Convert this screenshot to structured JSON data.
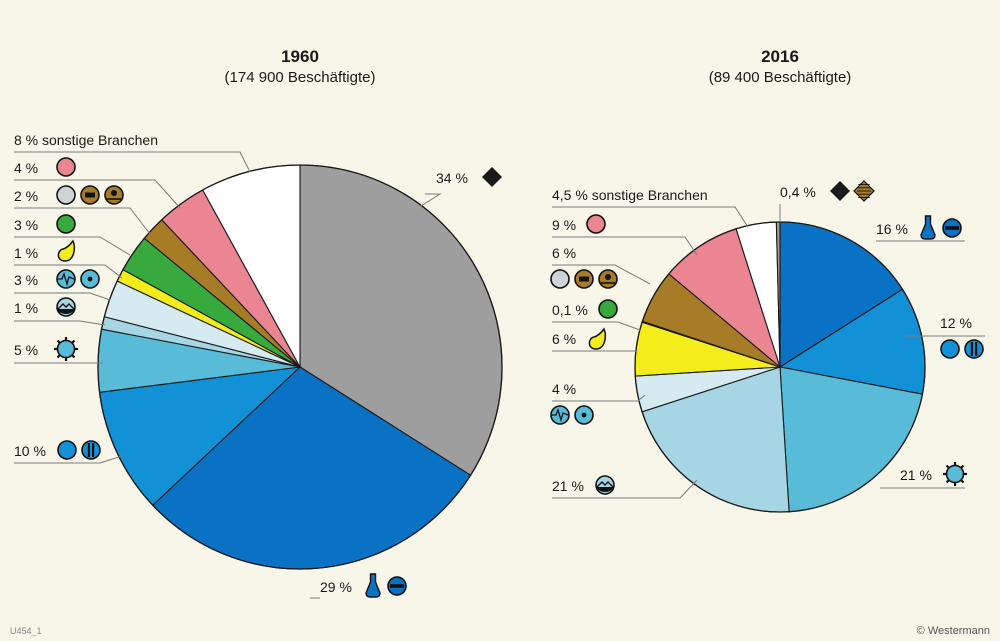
{
  "chart_data": [
    {
      "type": "pie",
      "title": "1960",
      "subtitle": "(174 900 Beschäftigte)",
      "slices": [
        {
          "value": 34,
          "label": "34 %",
          "color": "#9e9e9e",
          "icons": [
            "black-diamond-icon"
          ]
        },
        {
          "value": 29,
          "label": "29 %",
          "color": "#0a72c4",
          "icons": [
            "flask-icon",
            "blue-circle-bar-icon"
          ]
        },
        {
          "value": 10,
          "label": "10 %",
          "color": "#1291d6",
          "icons": [
            "blue-circle-icon",
            "blue-circle-double-bar-icon"
          ]
        },
        {
          "value": 5,
          "label": "5 %",
          "color": "#58bcd8",
          "icons": [
            "gear-sun-icon"
          ]
        },
        {
          "value": 1,
          "label": "1 %",
          "color": "#a6d6e4",
          "icons": [
            "wave-circle-icon"
          ]
        },
        {
          "value": 3,
          "label": "3 %",
          "color": "#d6ebf1",
          "icons": [
            "pulse-circle-icon",
            "dot-circle-icon"
          ]
        },
        {
          "value": 1,
          "label": "1 %",
          "color": "#f5ec1c",
          "icons": [
            "yellow-drop-icon"
          ]
        },
        {
          "value": 3,
          "label": "3 %",
          "color": "#38a93d",
          "icons": [
            "green-circle-icon"
          ]
        },
        {
          "value": 2,
          "label": "2 %",
          "color": "#a77c26",
          "icons": [
            "grey-circle-icon",
            "brown-bar-circle-icon",
            "brown-person-circle-icon"
          ]
        },
        {
          "value": 4,
          "label": "4 %",
          "color": "#ec8592",
          "icons": [
            "pink-circle-icon"
          ]
        },
        {
          "value": 8,
          "label": "8 % sonstige Branchen",
          "color": "#ffffff",
          "icons": []
        }
      ]
    },
    {
      "type": "pie",
      "title": "2016",
      "subtitle": "(89 400 Beschäftigte)",
      "slices": [
        {
          "value": 16,
          "label": "16 %",
          "color": "#0a72c4",
          "icons": [
            "flask-icon",
            "blue-circle-bar-icon"
          ]
        },
        {
          "value": 12,
          "label": "12 %",
          "color": "#1291d6",
          "icons": [
            "blue-circle-icon",
            "blue-circle-double-bar-icon"
          ]
        },
        {
          "value": 21,
          "label": "21 %",
          "color": "#58bcd8",
          "icons": [
            "gear-sun-icon"
          ]
        },
        {
          "value": 21,
          "label": "21 %",
          "color": "#a6d6e4",
          "icons": [
            "wave-circle-icon"
          ]
        },
        {
          "value": 4,
          "label": "4 %",
          "color": "#d6ebf1",
          "icons": [
            "pulse-circle-icon",
            "dot-circle-icon"
          ]
        },
        {
          "value": 6,
          "label": "6 %",
          "color": "#f5ec1c",
          "icons": [
            "yellow-drop-icon"
          ]
        },
        {
          "value": 0.1,
          "label": "0,1 %",
          "color": "#38a93d",
          "icons": [
            "green-circle-icon"
          ]
        },
        {
          "value": 6,
          "label": "6 %",
          "color": "#a77c26",
          "icons": [
            "grey-circle-icon",
            "brown-bar-circle-icon",
            "brown-person-circle-icon"
          ]
        },
        {
          "value": 9,
          "label": "9 %",
          "color": "#ec8592",
          "icons": [
            "pink-circle-icon"
          ]
        },
        {
          "value": 4.5,
          "label": "4,5 % sonstige Branchen",
          "color": "#ffffff",
          "icons": []
        },
        {
          "value": 0.4,
          "label": "0,4 %",
          "color": "#9e9e9e",
          "icons": [
            "black-diamond-icon",
            "brown-striped-diamond-icon"
          ]
        }
      ]
    }
  ],
  "footer": {
    "code": "U454_1",
    "credit": "© Westermann"
  }
}
